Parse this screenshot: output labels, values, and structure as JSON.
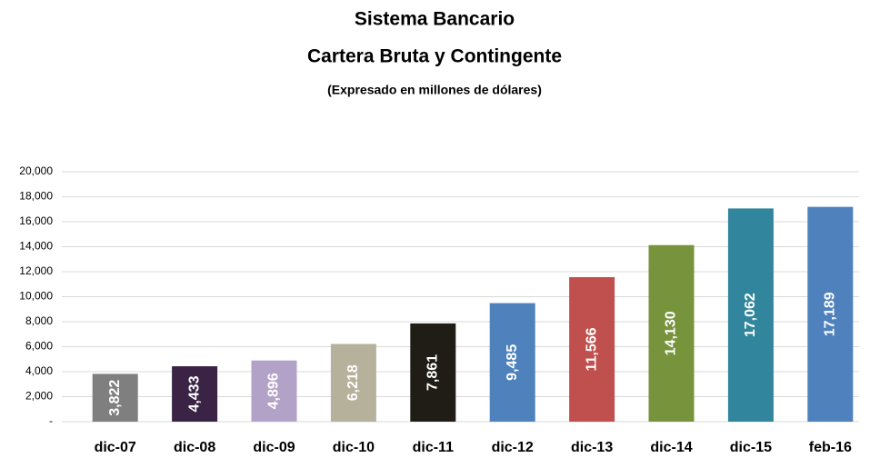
{
  "chart_data": {
    "type": "bar",
    "title": "Sistema Bancario",
    "subtitle": "Cartera Bruta y Contingente",
    "note": "(Expresado en millones de dólares)",
    "categories": [
      "dic-07",
      "dic-08",
      "dic-09",
      "dic-10",
      "dic-11",
      "dic-12",
      "dic-13",
      "dic-14",
      "dic-15",
      "feb-16"
    ],
    "values": [
      3822,
      4433,
      4896,
      6218,
      7861,
      9485,
      11566,
      14130,
      17062,
      17189
    ],
    "value_labels": [
      "3,822",
      "4,433",
      "4,896",
      "6,218",
      "7,861",
      "9,485",
      "11,566",
      "14,130",
      "17,062",
      "17,189"
    ],
    "colors": [
      "#7f7f7f",
      "#3b2345",
      "#b3a2c7",
      "#b5b19b",
      "#1f1d15",
      "#4f81bd",
      "#c0504d",
      "#77933c",
      "#31859c",
      "#4f81bd"
    ],
    "ylim": [
      0,
      20000
    ],
    "yticks": [
      {
        "value": 0,
        "label": "-"
      },
      {
        "value": 2000,
        "label": "2,000"
      },
      {
        "value": 4000,
        "label": "4,000"
      },
      {
        "value": 6000,
        "label": "6,000"
      },
      {
        "value": 8000,
        "label": "8,000"
      },
      {
        "value": 10000,
        "label": "10,000"
      },
      {
        "value": 12000,
        "label": "12,000"
      },
      {
        "value": 14000,
        "label": "14,000"
      },
      {
        "value": 16000,
        "label": "16,000"
      },
      {
        "value": 18000,
        "label": "18,000"
      },
      {
        "value": 20000,
        "label": "20,000"
      }
    ],
    "grid": true
  }
}
